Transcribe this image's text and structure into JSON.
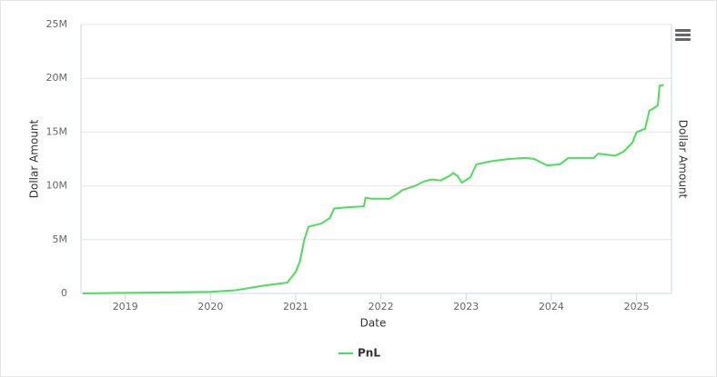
{
  "chart_data": {
    "type": "line",
    "xlabel": "Date",
    "ylabel": "Dollar Amount",
    "y2label": "Dollar Amount",
    "x": [
      2018.5,
      2019.0,
      2019.5,
      2020.0,
      2020.3,
      2020.6,
      2020.9,
      2021.0,
      2021.05,
      2021.1,
      2021.15,
      2021.3,
      2021.4,
      2021.45,
      2021.6,
      2021.8,
      2021.82,
      2021.9,
      2022.1,
      2022.2,
      2022.25,
      2022.4,
      2022.5,
      2022.6,
      2022.7,
      2022.8,
      2022.85,
      2022.9,
      2022.95,
      2023.05,
      2023.12,
      2023.3,
      2023.5,
      2023.7,
      2023.8,
      2023.95,
      2024.1,
      2024.2,
      2024.5,
      2024.55,
      2024.75,
      2024.85,
      2024.95,
      2025.0,
      2025.1,
      2025.15,
      2025.2,
      2025.25,
      2025.27,
      2025.32
    ],
    "series": [
      {
        "name": "PnL",
        "color": "#4cdd5b",
        "values": [
          0,
          50000,
          100000,
          150000,
          300000,
          700000,
          1000000,
          2000000,
          3000000,
          5000000,
          6200000,
          6500000,
          7000000,
          7900000,
          8000000,
          8100000,
          8900000,
          8800000,
          8800000,
          9300000,
          9600000,
          10000000,
          10400000,
          10600000,
          10500000,
          10900000,
          11200000,
          10900000,
          10300000,
          10800000,
          12000000,
          12300000,
          12500000,
          12600000,
          12500000,
          11900000,
          12000000,
          12600000,
          12600000,
          13000000,
          12800000,
          13200000,
          14000000,
          15000000,
          15300000,
          17000000,
          17200000,
          17500000,
          19300000,
          19400000
        ]
      }
    ],
    "xlim": [
      2018.48,
      2025.41
    ],
    "xticks": [
      2019,
      2020,
      2021,
      2022,
      2023,
      2024,
      2025
    ],
    "ylim": [
      0,
      25000000
    ],
    "yticks": [
      0,
      {
        "value": 5000000,
        "label": "5M"
      },
      {
        "value": 10000000,
        "label": "10M"
      },
      {
        "value": 15000000,
        "label": "15M"
      },
      {
        "value": 20000000,
        "label": "20M"
      },
      {
        "value": 25000000,
        "label": "25M"
      }
    ],
    "grid": true
  }
}
